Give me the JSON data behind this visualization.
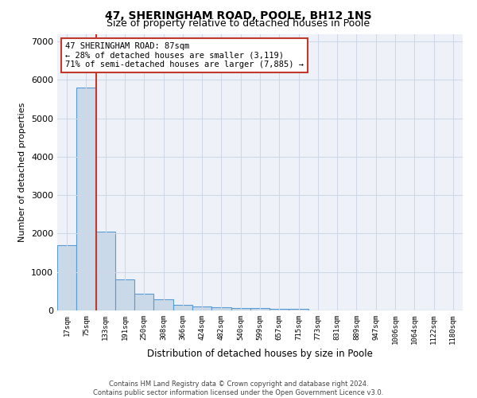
{
  "title": "47, SHERINGHAM ROAD, POOLE, BH12 1NS",
  "subtitle": "Size of property relative to detached houses in Poole",
  "xlabel": "Distribution of detached houses by size in Poole",
  "ylabel": "Number of detached properties",
  "categories": [
    "17sqm",
    "75sqm",
    "133sqm",
    "191sqm",
    "250sqm",
    "308sqm",
    "366sqm",
    "424sqm",
    "482sqm",
    "540sqm",
    "599sqm",
    "657sqm",
    "715sqm",
    "773sqm",
    "831sqm",
    "889sqm",
    "947sqm",
    "1006sqm",
    "1064sqm",
    "1122sqm",
    "1180sqm"
  ],
  "values": [
    1700,
    5800,
    2050,
    800,
    430,
    280,
    150,
    100,
    75,
    60,
    55,
    50,
    45,
    0,
    0,
    0,
    0,
    0,
    0,
    0,
    0
  ],
  "bar_color": "#c9d9e8",
  "bar_edge_color": "#5b9bd5",
  "vline_color": "#c0392b",
  "annotation_box_edge_color": "#c0392b",
  "marker_label_line1": "47 SHERINGHAM ROAD: 87sqm",
  "marker_label_line2": "← 28% of detached houses are smaller (3,119)",
  "marker_label_line3": "71% of semi-detached houses are larger (7,885) →",
  "ylim": [
    0,
    7200
  ],
  "yticks": [
    0,
    1000,
    2000,
    3000,
    4000,
    5000,
    6000,
    7000
  ],
  "grid_color": "#d0d8e8",
  "background_color": "#eef2f8",
  "footer_line1": "Contains HM Land Registry data © Crown copyright and database right 2024.",
  "footer_line2": "Contains public sector information licensed under the Open Government Licence v3.0.",
  "title_fontsize": 10,
  "subtitle_fontsize": 9
}
